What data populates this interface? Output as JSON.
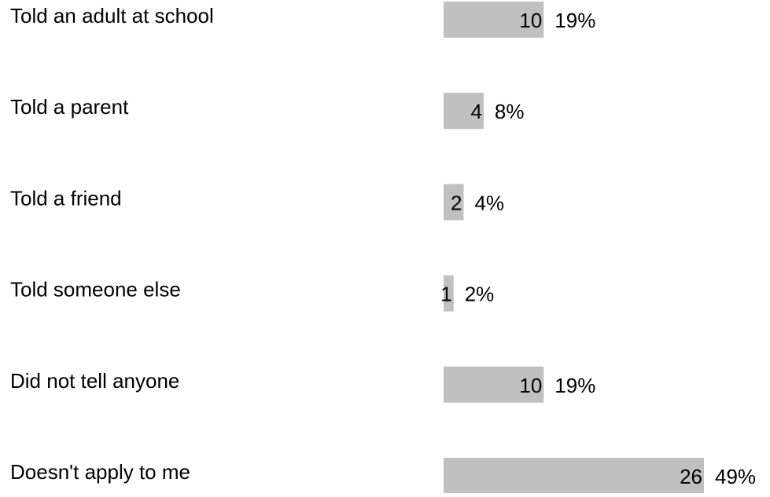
{
  "chart_data": {
    "type": "bar",
    "orientation": "horizontal",
    "categories": [
      "Told an adult at school",
      "Told a parent",
      "Told a friend",
      "Told someone else",
      "Did not tell anyone",
      "Doesn't apply to me"
    ],
    "values": [
      10,
      4,
      2,
      1,
      10,
      26
    ],
    "percent_labels": [
      "19%",
      "8%",
      "4%",
      "2%",
      "19%",
      "49%"
    ],
    "title": "",
    "xlabel": "",
    "ylabel": "",
    "xlim": [
      0,
      26
    ],
    "grid": false,
    "legend": "none",
    "bar_color": "#c0c0c0"
  }
}
